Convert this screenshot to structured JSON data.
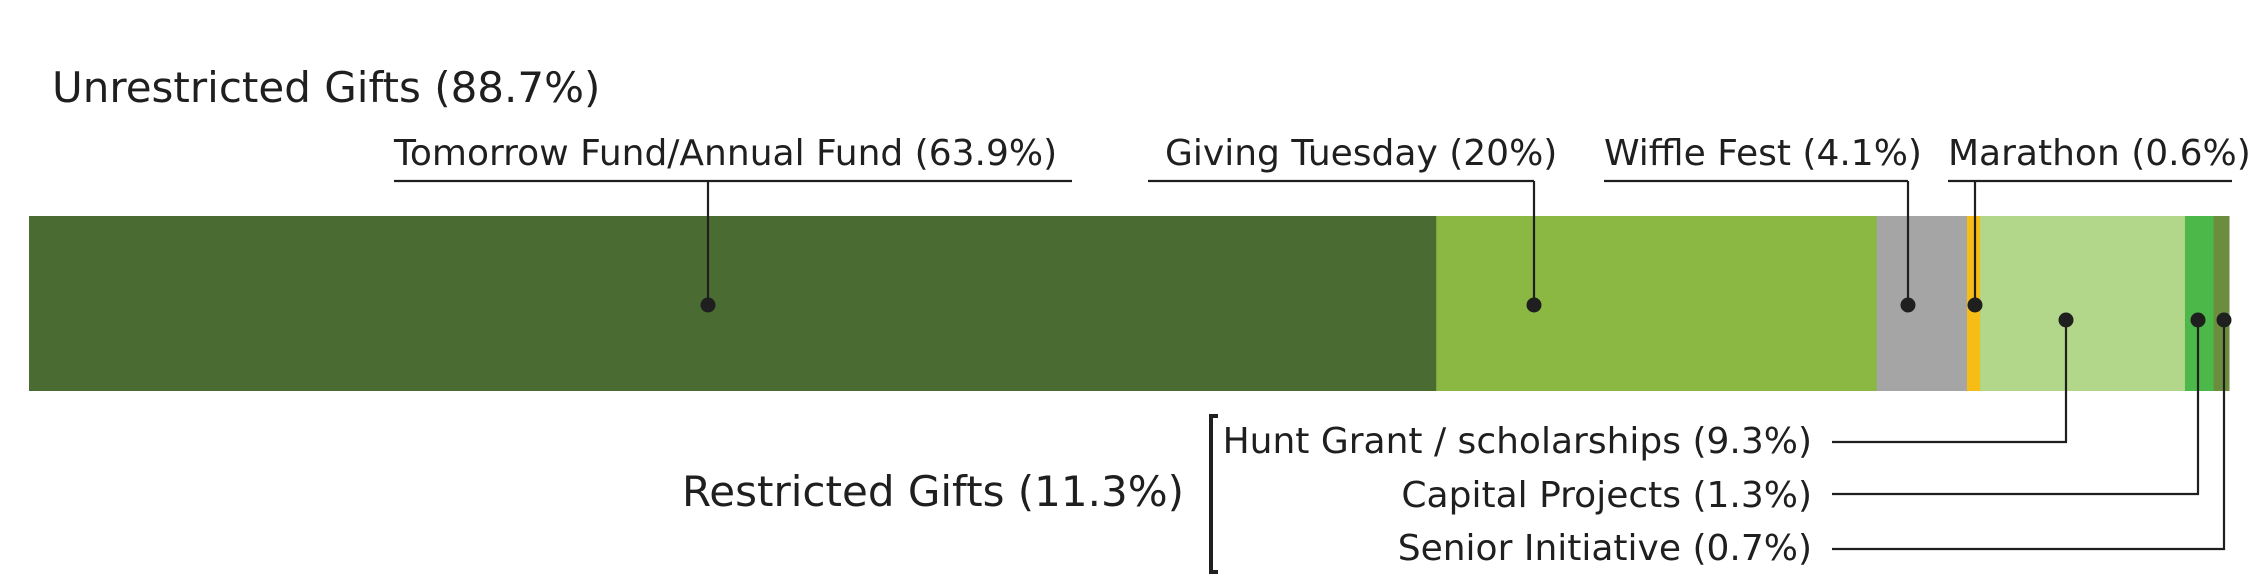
{
  "chart_data": {
    "type": "bar",
    "orientation": "horizontal-stacked",
    "groups": [
      {
        "label": "Unrestricted Gifts (88.7%)",
        "value": 88.7
      },
      {
        "label": "Restricted Gifts (11.3%)",
        "value": 11.3
      }
    ],
    "segments": [
      {
        "name": "Tomorrow Fund/Annual Fund",
        "label": "Tomorrow Fund/Annual Fund (63.9%)",
        "value": 63.9,
        "group": "Unrestricted",
        "color": "#4a6b32"
      },
      {
        "name": "Giving Tuesday",
        "label": "Giving Tuesday (20%)",
        "value": 20.0,
        "group": "Unrestricted",
        "color": "#8ab843"
      },
      {
        "name": "Wiffle Fest",
        "label": "Wiffle Fest (4.1%)",
        "value": 4.1,
        "group": "Unrestricted",
        "color": "#a5a5a5"
      },
      {
        "name": "Marathon",
        "label": "Marathon (0.6%)",
        "value": 0.6,
        "group": "Unrestricted",
        "color": "#f6bd16"
      },
      {
        "name": "Hunt Grant / scholarships",
        "label": "Hunt Grant / scholarships (9.3%)",
        "value": 9.3,
        "group": "Restricted",
        "color": "#b2d68a"
      },
      {
        "name": "Capital Projects",
        "label": "Capital Projects (1.3%)",
        "value": 1.3,
        "group": "Restricted",
        "color": "#4cb849"
      },
      {
        "name": "Senior Initiative",
        "label": "Senior Initiative  (0.7%)",
        "value": 0.7,
        "group": "Restricted",
        "color": "#6b8e3e"
      }
    ],
    "xlim": [
      0,
      100
    ]
  }
}
